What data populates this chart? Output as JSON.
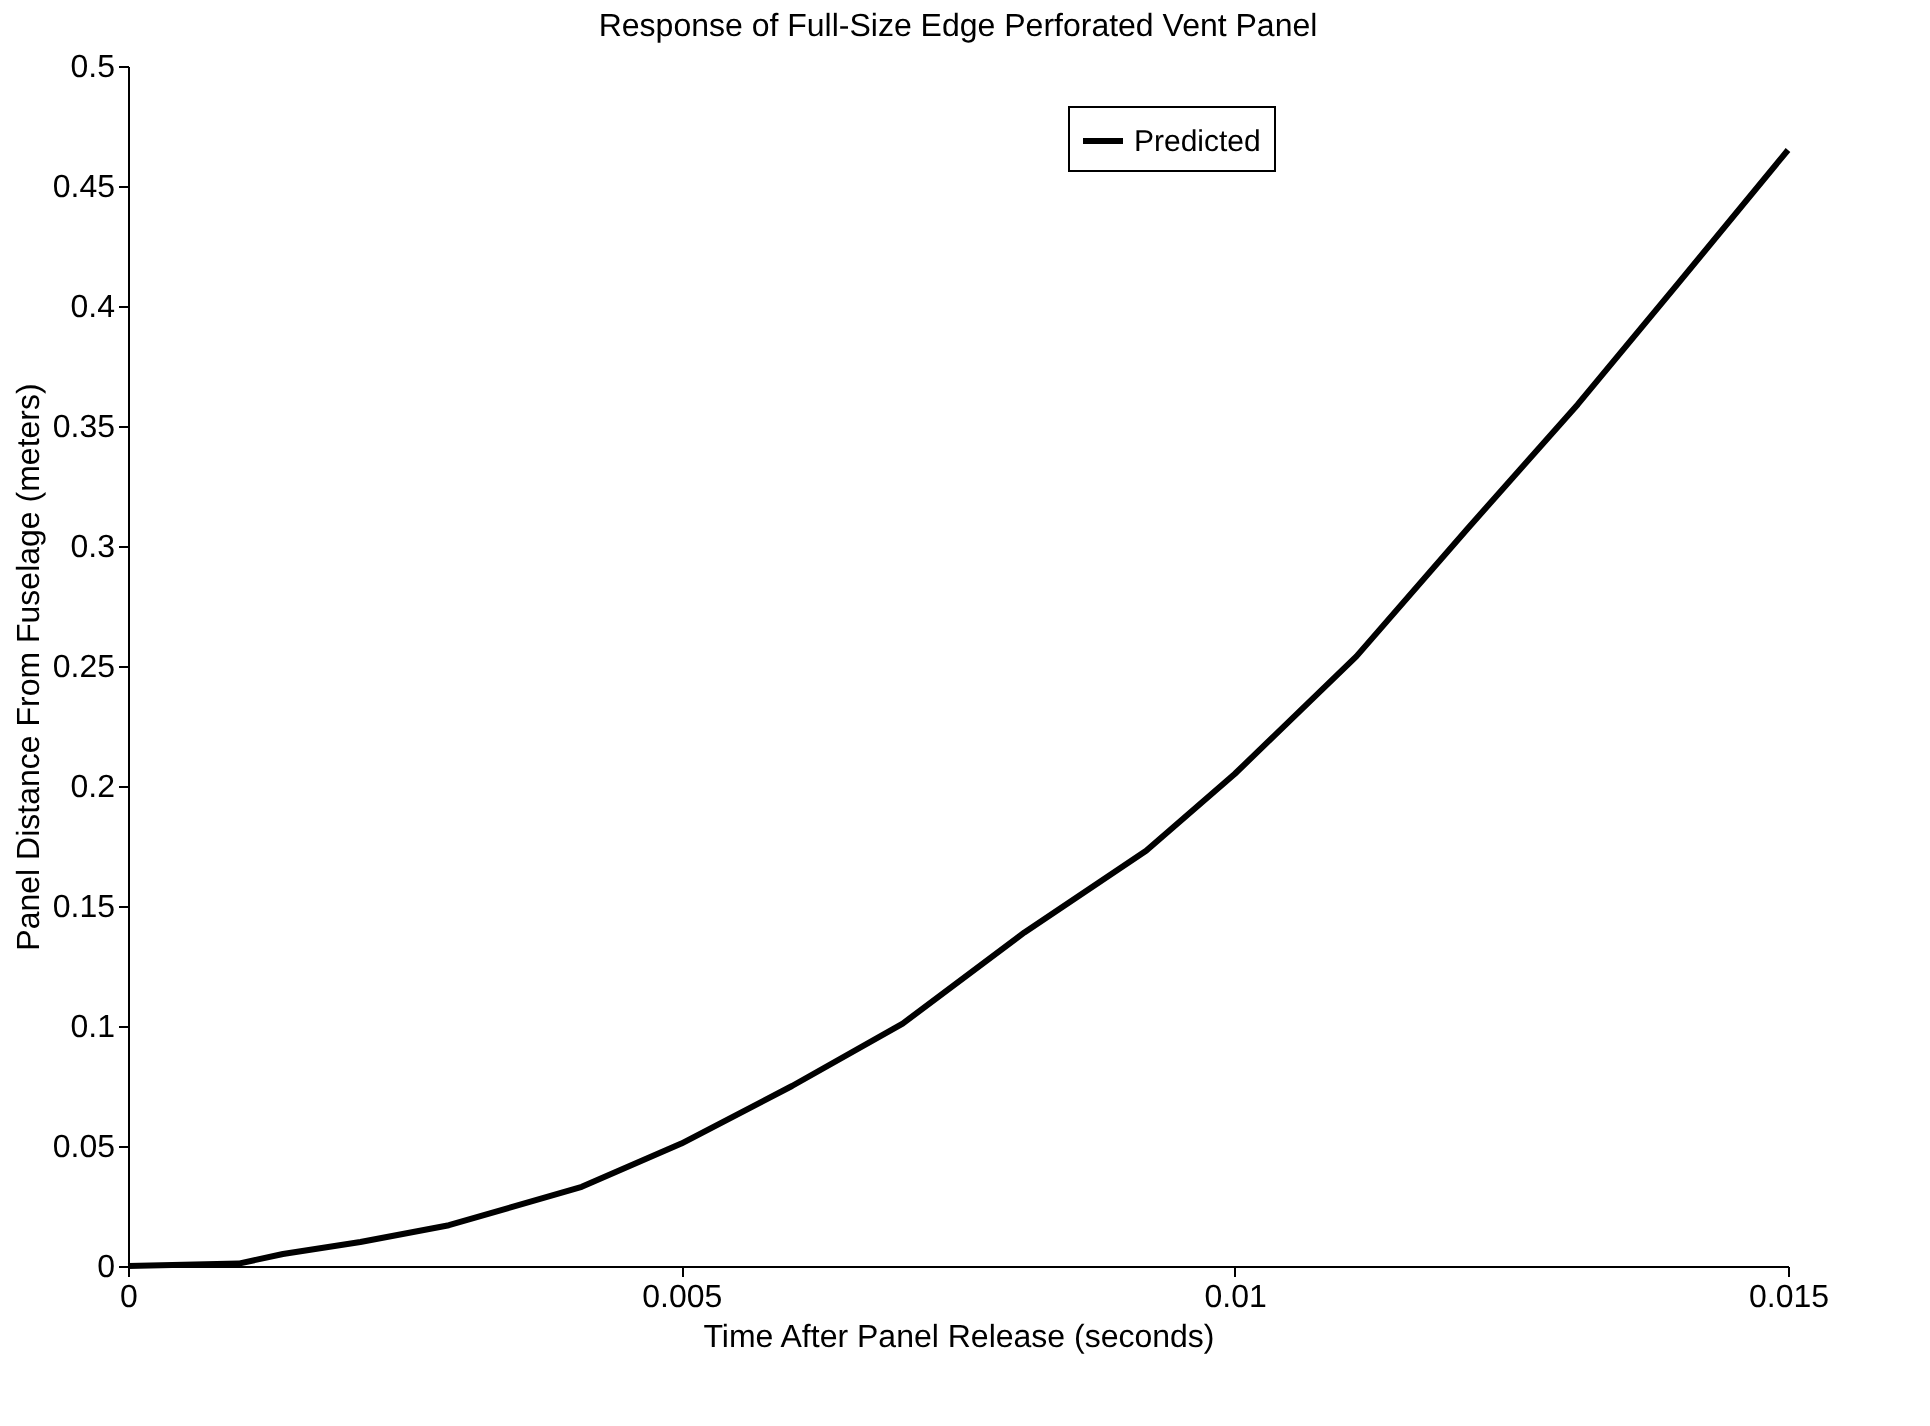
{
  "chart_data": {
    "type": "line",
    "title": "Response of Full-Size Edge Perforated Vent Panel",
    "xlabel": "Time After Panel Release (seconds)",
    "ylabel": "Panel Distance From Fuselage (meters)",
    "series": [
      {
        "name": "Predicted",
        "color": "#000000",
        "x": [
          0,
          0.001,
          0.0014,
          0.0021,
          0.0029,
          0.0041,
          0.005,
          0.006,
          0.007,
          0.0081,
          0.0092,
          0.01,
          0.0111,
          0.0121,
          0.0131,
          0.014,
          0.015
        ],
        "values": [
          0,
          0.001,
          0.005,
          0.01,
          0.017,
          0.033,
          0.051,
          0.075,
          0.101,
          0.139,
          0.173,
          0.205,
          0.254,
          0.307,
          0.359,
          0.409,
          0.465
        ]
      }
    ],
    "xlim": [
      0,
      0.015
    ],
    "xticks": [
      0,
      0.005,
      0.01,
      0.015
    ],
    "ylim": [
      0,
      0.5
    ],
    "yticks": [
      0,
      0.05,
      0.1,
      0.15,
      0.2,
      0.25,
      0.3,
      0.35,
      0.4,
      0.45,
      0.5
    ],
    "grid": false,
    "legend": "top",
    "marker": "none",
    "line_style": "solid"
  }
}
